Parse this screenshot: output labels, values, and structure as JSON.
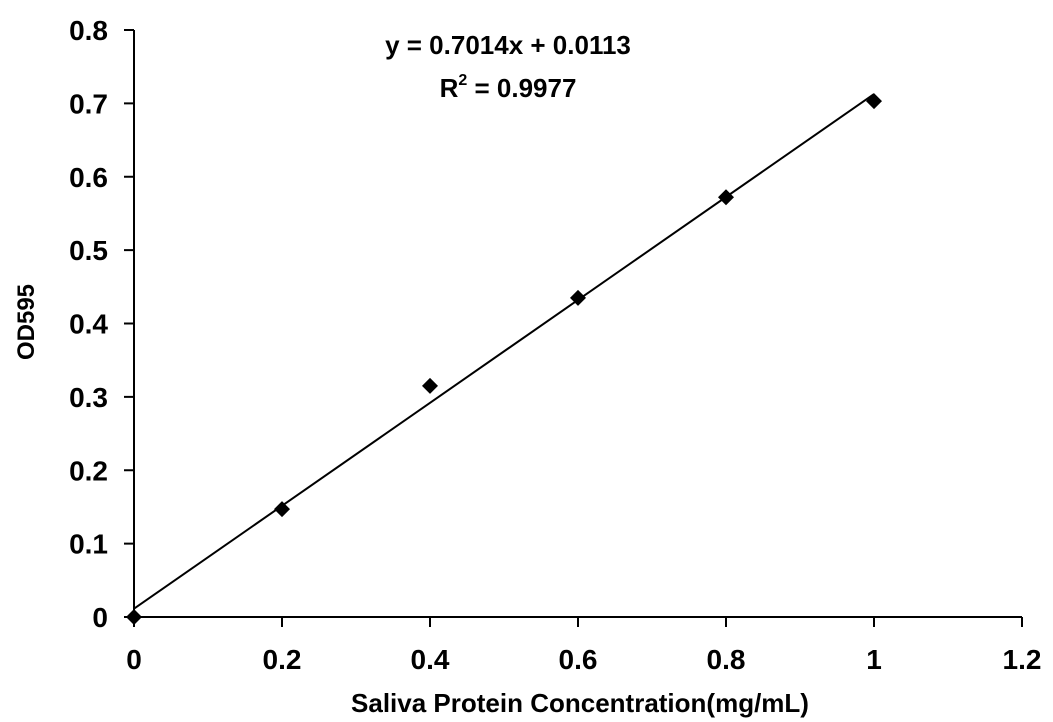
{
  "chart_data": {
    "type": "scatter",
    "title": "",
    "xlabel": "Saliva Protein Concentration(mg/mL)",
    "ylabel": "OD595",
    "xlim": [
      0,
      1.2
    ],
    "ylim": [
      0,
      0.8
    ],
    "x_ticks": [
      "0",
      "0.2",
      "0.4",
      "0.6",
      "0.8",
      "1",
      "1.2"
    ],
    "y_ticks": [
      "0",
      "0.1",
      "0.2",
      "0.3",
      "0.4",
      "0.5",
      "0.6",
      "0.7",
      "0.8"
    ],
    "grid": false,
    "legend": "none",
    "marker": "diamond",
    "marker_color": "#000000",
    "series": [
      {
        "x": [
          0,
          0.2,
          0.4,
          0.6,
          0.8,
          1.0
        ],
        "y": [
          0.0,
          0.147,
          0.315,
          0.435,
          0.572,
          0.703
        ]
      }
    ],
    "trendline": {
      "type": "linear",
      "slope": 0.7014,
      "intercept": 0.0113,
      "x_range": [
        0,
        1.0
      ],
      "color": "#000000"
    },
    "annotations": {
      "equation": "y = 0.7014x + 0.0113",
      "r_squared_prefix": "R",
      "r_squared_sup": "2",
      "r_squared_value": " = 0.9977"
    }
  }
}
